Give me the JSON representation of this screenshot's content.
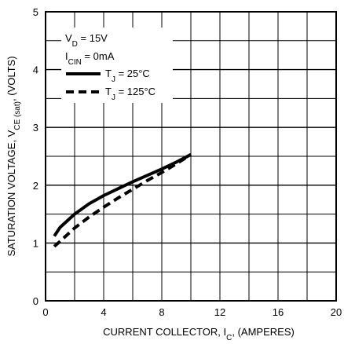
{
  "chart_data": {
    "type": "line",
    "xlabel": {
      "main": "CURRENT COLLECTOR, I",
      "sub": "C",
      "tail": ", (AMPERES)"
    },
    "ylabel": {
      "main": "SATURATION VOLTAGE, V",
      "sub": "CE (sat)",
      "tail": ", (VOLTS)"
    },
    "xlim": [
      0,
      20
    ],
    "ylim": [
      0,
      5
    ],
    "x_ticks": [
      0,
      4,
      8,
      12,
      16,
      20
    ],
    "y_ticks": [
      0,
      1,
      2,
      3,
      4,
      5
    ],
    "x_minor_step": 2,
    "y_minor_step": 0.5,
    "grid": true,
    "legend_position": "top-left",
    "conditions": [
      {
        "main": "V",
        "sub": "D",
        "tail": " = 15V"
      },
      {
        "main": "I",
        "sub": "CIN",
        "tail": " = 0mA"
      }
    ],
    "series": [
      {
        "name": {
          "main": "T",
          "sub": "J",
          "tail": " = 25°C"
        },
        "style": "solid",
        "x": [
          0.6,
          1,
          2,
          3,
          4,
          5,
          6,
          7,
          8,
          9,
          10
        ],
        "y": [
          1.12,
          1.27,
          1.5,
          1.68,
          1.82,
          1.94,
          2.06,
          2.17,
          2.28,
          2.4,
          2.53
        ]
      },
      {
        "name": {
          "main": "T",
          "sub": "J",
          "tail": " = 125°C"
        },
        "style": "dashed",
        "x": [
          0.6,
          1,
          2,
          3,
          4,
          5,
          6,
          7,
          8,
          9,
          10
        ],
        "y": [
          0.94,
          1.03,
          1.26,
          1.45,
          1.62,
          1.78,
          1.93,
          2.08,
          2.22,
          2.37,
          2.53
        ]
      }
    ]
  }
}
